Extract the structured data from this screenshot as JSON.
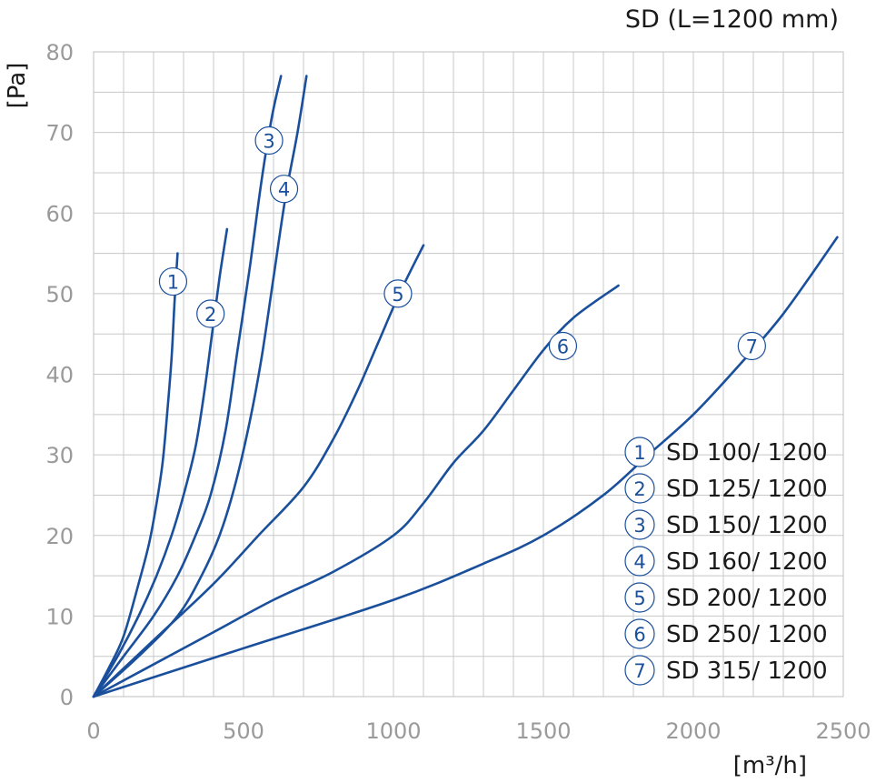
{
  "chart_data": {
    "type": "line",
    "title": "SD (L=1200 mm)",
    "xlabel": "[m³/h]",
    "ylabel": "[Pa]",
    "xlim": [
      0,
      2500
    ],
    "ylim": [
      0,
      80
    ],
    "x_ticks": [
      "0",
      "500",
      "1000",
      "1500",
      "2000",
      "2500"
    ],
    "y_ticks": [
      "0",
      "10",
      "20",
      "30",
      "40",
      "50",
      "60",
      "70",
      "80"
    ],
    "grid": true,
    "grid_minor_x_step": 100,
    "grid_minor_y_step": 5,
    "legend_position": "bottom-right",
    "colors": {
      "series": "#1a4f9c",
      "grid": "#c8c8c8",
      "tick": "#9a9a9a"
    },
    "series": [
      {
        "name": "SD 100/ 1200",
        "number": "1",
        "label_at": [
          265,
          51.5
        ],
        "points": [
          [
            0,
            0
          ],
          [
            50,
            3.5
          ],
          [
            100,
            7.5
          ],
          [
            150,
            14
          ],
          [
            185,
            19
          ],
          [
            210,
            24
          ],
          [
            230,
            29
          ],
          [
            245,
            35
          ],
          [
            260,
            42
          ],
          [
            270,
            49
          ],
          [
            280,
            55
          ]
        ]
      },
      {
        "name": "SD 125/ 1200",
        "number": "2",
        "label_at": [
          390,
          47.5
        ],
        "points": [
          [
            0,
            0
          ],
          [
            80,
            5
          ],
          [
            150,
            10
          ],
          [
            210,
            15
          ],
          [
            260,
            20
          ],
          [
            300,
            25
          ],
          [
            340,
            31
          ],
          [
            370,
            38
          ],
          [
            395,
            45
          ],
          [
            420,
            52
          ],
          [
            445,
            58
          ]
        ]
      },
      {
        "name": "SD 150/ 1200",
        "number": "3",
        "label_at": [
          585,
          69
        ],
        "points": [
          [
            0,
            0
          ],
          [
            100,
            5
          ],
          [
            200,
            10
          ],
          [
            280,
            15
          ],
          [
            340,
            20
          ],
          [
            390,
            25
          ],
          [
            440,
            33
          ],
          [
            480,
            43
          ],
          [
            520,
            53
          ],
          [
            560,
            64
          ],
          [
            595,
            72
          ],
          [
            625,
            77
          ]
        ]
      },
      {
        "name": "SD 160/ 1200",
        "number": "4",
        "label_at": [
          635,
          63
        ],
        "points": [
          [
            0,
            0
          ],
          [
            150,
            5
          ],
          [
            280,
            10
          ],
          [
            360,
            15
          ],
          [
            420,
            20
          ],
          [
            470,
            26
          ],
          [
            520,
            34
          ],
          [
            560,
            42
          ],
          [
            600,
            52
          ],
          [
            640,
            62
          ],
          [
            680,
            70
          ],
          [
            710,
            77
          ]
        ]
      },
      {
        "name": "SD 200/ 1200",
        "number": "5",
        "label_at": [
          1015,
          50
        ],
        "points": [
          [
            0,
            0
          ],
          [
            200,
            7
          ],
          [
            400,
            14
          ],
          [
            550,
            20
          ],
          [
            700,
            26
          ],
          [
            800,
            32
          ],
          [
            880,
            38
          ],
          [
            950,
            44
          ],
          [
            1020,
            50
          ],
          [
            1100,
            56
          ]
        ]
      },
      {
        "name": "SD 250/ 1200",
        "number": "6",
        "label_at": [
          1565,
          43.5
        ],
        "points": [
          [
            0,
            0
          ],
          [
            200,
            4
          ],
          [
            400,
            8
          ],
          [
            600,
            12
          ],
          [
            800,
            15.5
          ],
          [
            1000,
            20
          ],
          [
            1100,
            24
          ],
          [
            1200,
            29
          ],
          [
            1300,
            33
          ],
          [
            1400,
            38
          ],
          [
            1500,
            43
          ],
          [
            1600,
            47
          ],
          [
            1750,
            51
          ]
        ]
      },
      {
        "name": "SD 315/ 1200",
        "number": "7",
        "label_at": [
          2195,
          43.5
        ],
        "points": [
          [
            0,
            0
          ],
          [
            500,
            6
          ],
          [
            1000,
            12
          ],
          [
            1300,
            16.5
          ],
          [
            1500,
            20
          ],
          [
            1700,
            25
          ],
          [
            1850,
            30
          ],
          [
            2000,
            35
          ],
          [
            2150,
            41
          ],
          [
            2300,
            47.5
          ],
          [
            2480,
            57
          ]
        ]
      }
    ]
  }
}
